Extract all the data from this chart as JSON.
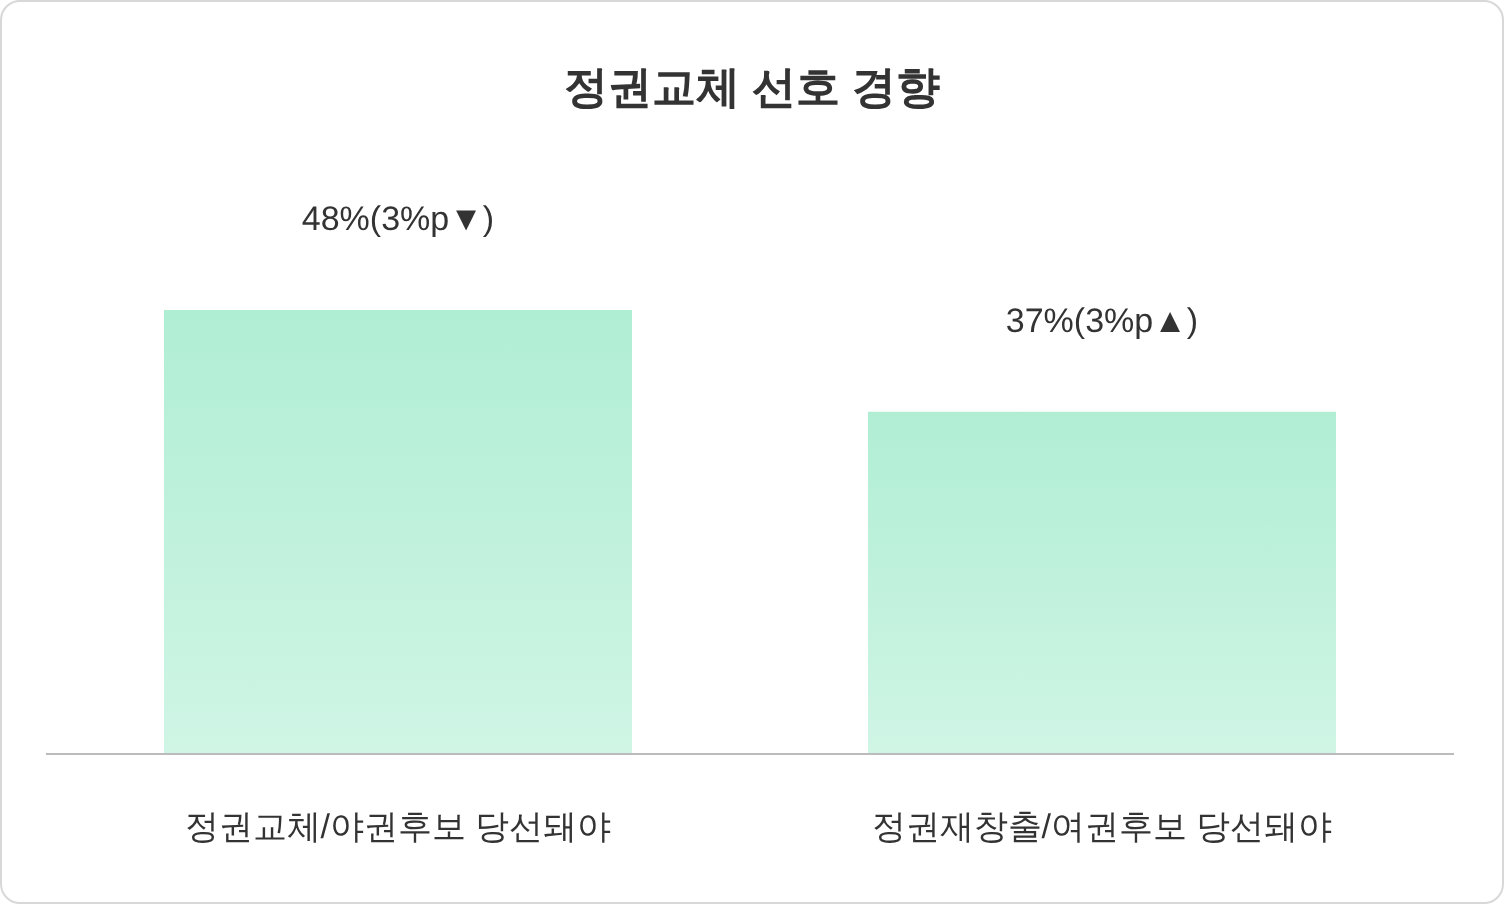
{
  "chart_data": {
    "type": "bar",
    "title": "정권교체 선호 경향",
    "categories": [
      "정권교체/야권후보 당선돼야",
      "정권재창출/여권후보 당선돼야"
    ],
    "values": [
      48,
      37
    ],
    "value_labels": [
      "48%(3%p▼)",
      "37%(3%p▲)"
    ],
    "color": "#b0eed4",
    "grid": false,
    "legend": false
  }
}
